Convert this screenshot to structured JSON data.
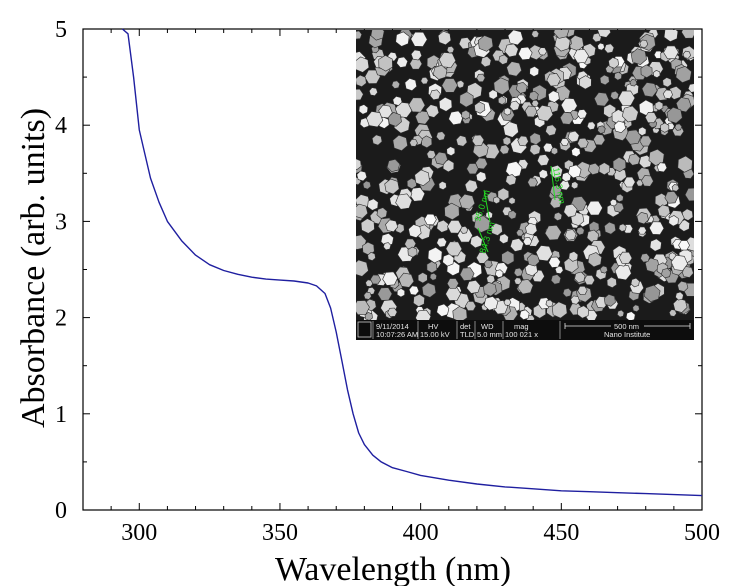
{
  "chart_data": {
    "type": "line",
    "xlabel": "Wavelength (nm)",
    "ylabel": "Absorbance (arb. units)",
    "xlim": [
      280,
      500
    ],
    "ylim": [
      0,
      5
    ],
    "xticks": [
      "300",
      "350",
      "400",
      "450",
      "500"
    ],
    "xtick_values": [
      300,
      350,
      400,
      450,
      500
    ],
    "yticks": [
      "0",
      "1",
      "2",
      "3",
      "4",
      "5"
    ],
    "ytick_values": [
      0,
      1,
      2,
      3,
      4,
      5
    ],
    "grid": false,
    "series": [
      {
        "color": "#1f1fa0",
        "x": [
          294,
          296,
          298,
          300,
          302,
          304,
          307,
          310,
          315,
          320,
          325,
          330,
          335,
          340,
          345,
          350,
          355,
          360,
          363,
          366,
          368,
          370,
          372,
          374,
          376,
          378,
          380,
          383,
          386,
          390,
          395,
          400,
          410,
          420,
          430,
          440,
          450,
          460,
          470,
          480,
          490,
          500
        ],
        "y": [
          5.0,
          4.95,
          4.5,
          3.95,
          3.7,
          3.45,
          3.2,
          3.0,
          2.8,
          2.65,
          2.55,
          2.49,
          2.45,
          2.42,
          2.4,
          2.39,
          2.38,
          2.36,
          2.33,
          2.25,
          2.1,
          1.85,
          1.55,
          1.25,
          1.0,
          0.8,
          0.68,
          0.57,
          0.5,
          0.44,
          0.4,
          0.36,
          0.31,
          0.27,
          0.24,
          0.22,
          0.2,
          0.19,
          0.18,
          0.17,
          0.16,
          0.15
        ]
      }
    ],
    "inset": {
      "type": "sem-micrograph",
      "info_bar": {
        "date_label": "9/11/2014",
        "time_label": "10:07:26 AM",
        "hv_header": "HV",
        "hv_value": "15.00 kV",
        "det_header": "det",
        "det_value": "TLD",
        "wd_header": "WD",
        "wd_value": "5.0 mm",
        "mag_header": "mag",
        "mag_value": "100 021 x",
        "scale_label": "500 nm",
        "institute": "Nano Institute"
      },
      "measurements": [
        "95.0 nm",
        "84.3 nm",
        "116.3 nm"
      ]
    }
  }
}
